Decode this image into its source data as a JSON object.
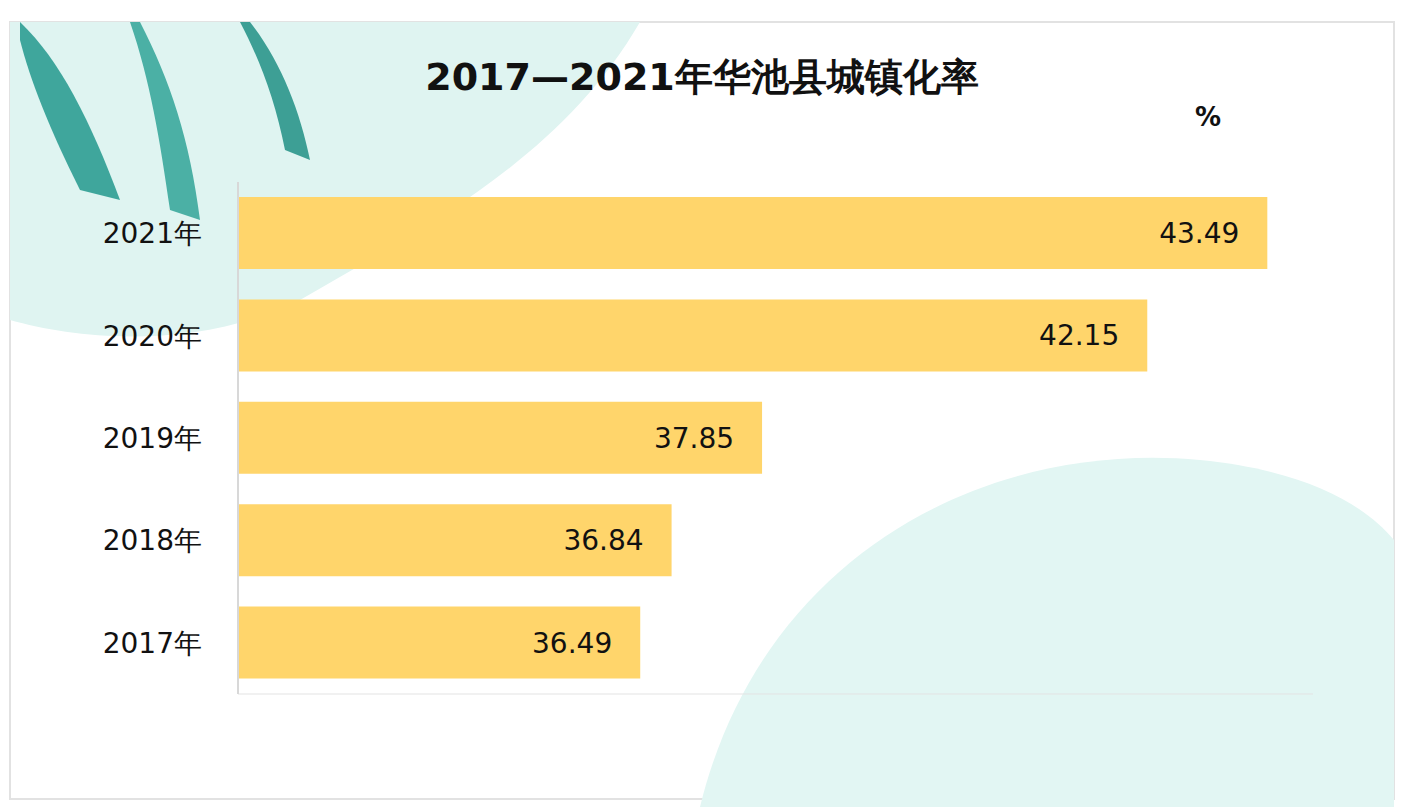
{
  "chart_data": {
    "type": "bar",
    "title": "2017—2021年华池县城镇化率",
    "xlabel": "%",
    "orientation": "horizontal",
    "categories": [
      "2017年",
      "2018年",
      "2019年",
      "2020年",
      "2021年"
    ],
    "values": [
      36.49,
      36.84,
      37.85,
      42.15,
      43.49
    ],
    "color": "#ffd56b",
    "xlim": [
      32,
      44
    ],
    "xticks": [],
    "grid": false,
    "data_labels": true,
    "tick_labels": "y"
  }
}
